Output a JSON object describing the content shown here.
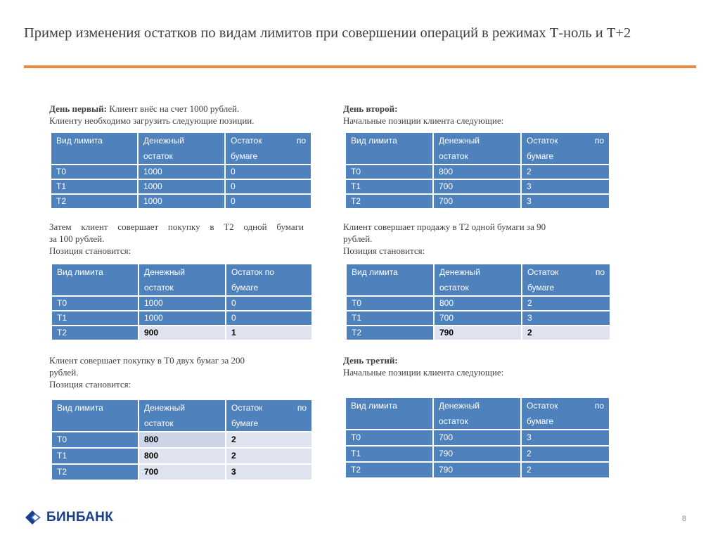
{
  "title": "Пример изменения остатков по видам лимитов  при совершении операций в режимах Т-ноль и Т+2",
  "headers": {
    "type": "Вид лимита",
    "cash1": "Денежный",
    "cash2": "остаток",
    "paper1": "Остаток",
    "paper1b": "по",
    "paper2": "бумаге",
    "paper_full": "Остаток по"
  },
  "left": {
    "p1_bold": "День первый:",
    "p1_rest": " Клиент внёс на счет 1000 рублей.",
    "p1_line2": "Клиенту необходимо загрузить следующие позиции.",
    "t1": [
      {
        "k": "Т0",
        "m": "1000",
        "p": "0"
      },
      {
        "k": "Т1",
        "m": "1000",
        "p": "0"
      },
      {
        "k": "Т2",
        "m": "1000",
        "p": "0"
      }
    ],
    "p2_line1": "Затем клиент совершает покупку в Т2 одной бумаги",
    "p2_line2": "за 100 рублей.",
    "p2_line3": "Позиция становится:",
    "t2": [
      {
        "k": "Т0",
        "m": "1000",
        "p": "0"
      },
      {
        "k": "Т1",
        "m": "1000",
        "p": "0"
      },
      {
        "k": "Т2",
        "m": "900",
        "p": "1"
      }
    ],
    "p3_line1": "Клиент совершает покупку в Т0 двух бумаг за 200",
    "p3_line2": "рублей.",
    "p3_line3": "Позиция становится:",
    "t3": [
      {
        "k": "Т0",
        "m": "800",
        "p": "2"
      },
      {
        "k": "Т1",
        "m": "800",
        "p": "2"
      },
      {
        "k": "Т2",
        "m": "700",
        "p": "3"
      }
    ]
  },
  "right": {
    "p1_bold": "День второй:",
    "p1_line2": "Начальные позиции клиента следующие:",
    "t1": [
      {
        "k": "Т0",
        "m": "800",
        "p": "2"
      },
      {
        "k": "Т1",
        "m": "700",
        "p": "3"
      },
      {
        "k": "Т2",
        "m": "700",
        "p": "3"
      }
    ],
    "p2_line1": "Клиент совершает продажу в Т2 одной бумаги за 90",
    "p2_line2": "рублей.",
    "p2_line3": "Позиция становится:",
    "t2": [
      {
        "k": "Т0",
        "m": "800",
        "p": "2"
      },
      {
        "k": "Т1",
        "m": "700",
        "p": "3"
      },
      {
        "k": "Т2",
        "m": "790",
        "p": "2"
      }
    ],
    "p3_bold": "День третий:",
    "p3_line2": "Начальные позиции клиента следующие:",
    "t3": [
      {
        "k": "Т0",
        "m": "700",
        "p": "3"
      },
      {
        "k": "Т1",
        "m": "790",
        "p": "2"
      },
      {
        "k": "Т2",
        "m": "790",
        "p": "2"
      }
    ]
  },
  "logo_text": "БИНБАНК",
  "page_number": "8",
  "colors": {
    "accent_rule": "#e8883a",
    "table_blue": "#4f81bd",
    "highlight": "#dfe3f0",
    "logo_blue": "#1a3f8f"
  }
}
